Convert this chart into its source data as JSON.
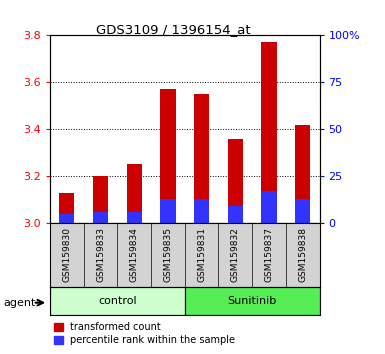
{
  "title": "GDS3109 / 1396154_at",
  "samples": [
    "GSM159830",
    "GSM159833",
    "GSM159834",
    "GSM159835",
    "GSM159831",
    "GSM159832",
    "GSM159837",
    "GSM159838"
  ],
  "transformed_counts": [
    3.13,
    3.2,
    3.25,
    3.57,
    3.55,
    3.36,
    3.77,
    3.42
  ],
  "percentile_ranks_pct": [
    5,
    6,
    6,
    13,
    13,
    9,
    17,
    13
  ],
  "bar_bottom": 3.0,
  "ylim_left": [
    3.0,
    3.8
  ],
  "ylim_right": [
    0,
    100
  ],
  "yticks_left": [
    3.0,
    3.2,
    3.4,
    3.6,
    3.8
  ],
  "yticks_right": [
    0,
    25,
    50,
    75,
    100
  ],
  "ytick_labels_right": [
    "0",
    "25",
    "50",
    "75",
    "100%"
  ],
  "red_color": "#cc0000",
  "blue_color": "#3333ff",
  "group_control_color": "#ccffcc",
  "group_sunitinib_color": "#55ee55",
  "bar_width": 0.45,
  "legend_labels": [
    "transformed count",
    "percentile rank within the sample"
  ]
}
